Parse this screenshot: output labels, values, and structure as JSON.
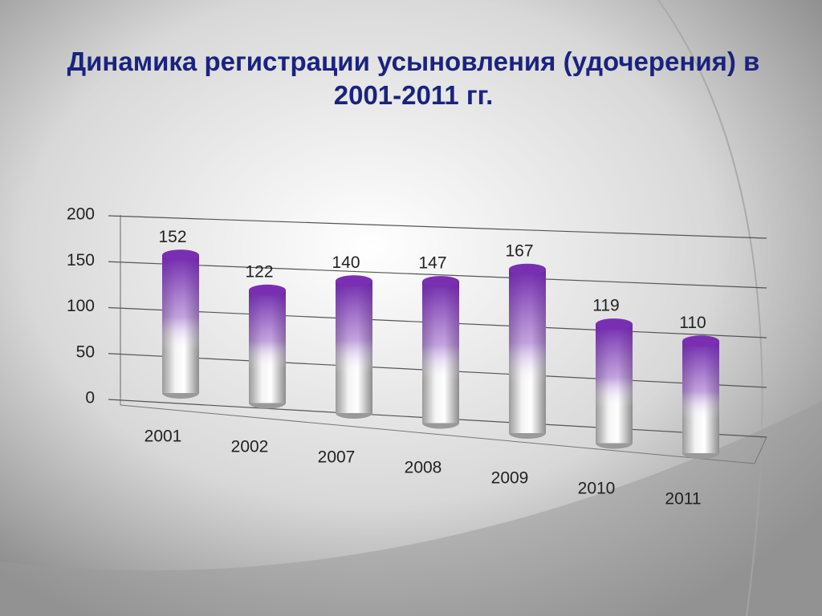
{
  "chart_data": {
    "type": "bar",
    "title": "Динамика регистрации усыновления (удочерения) в 2001-2011 гг.",
    "categories": [
      "2001",
      "2002",
      "2007",
      "2008",
      "2009",
      "2010",
      "2011"
    ],
    "values": [
      152,
      122,
      140,
      147,
      167,
      119,
      110
    ],
    "color": "#7a2fb3",
    "ylim": [
      0,
      200
    ],
    "yticks": [
      0,
      50,
      100,
      150,
      200
    ],
    "grid": true
  }
}
